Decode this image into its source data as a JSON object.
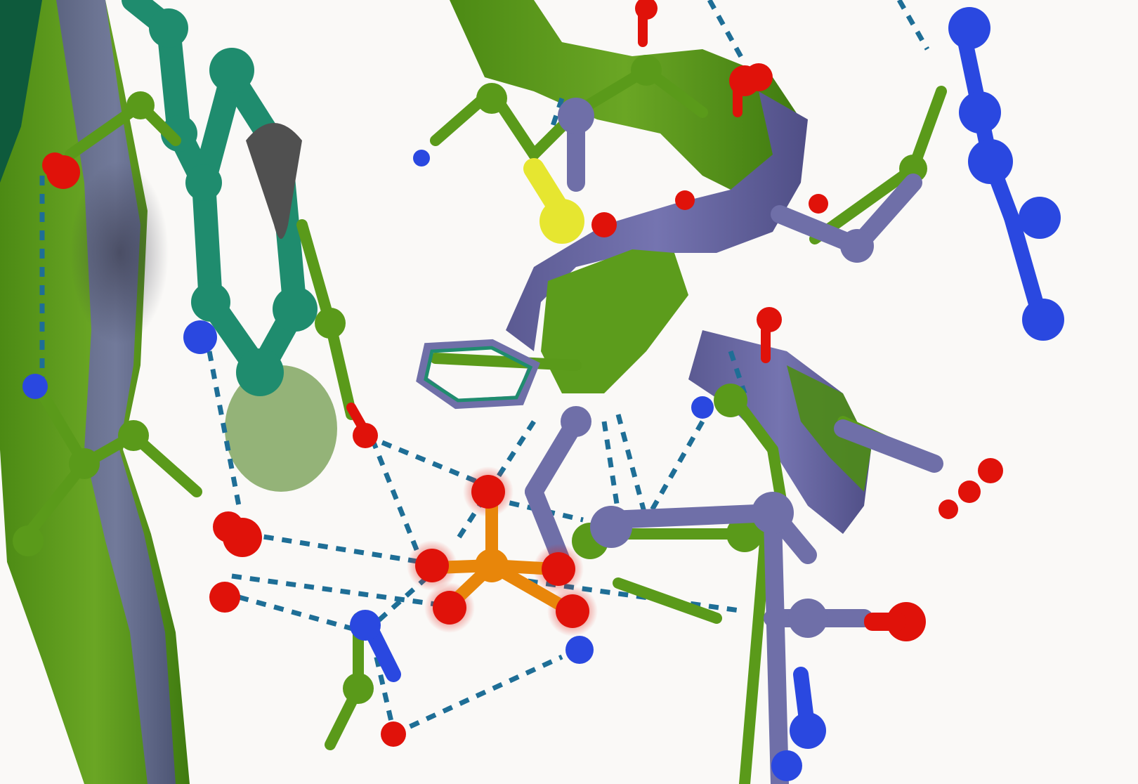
{
  "scene": {
    "background": "#faf9f7",
    "description_colors": {
      "green": "#5a9a1a",
      "teal": "#1f8c6e",
      "purple": "#6f6fa8",
      "oxygen": "#e0120a",
      "nitrogen": "#2a48e0",
      "sulfur": "#e6e630",
      "phosphorus": "#e8860a",
      "hbond": "#1e6e96"
    },
    "icons": {
      "ligand": "phosphate-ligand-icon",
      "ribbon": "protein-ribbon-icon"
    }
  }
}
